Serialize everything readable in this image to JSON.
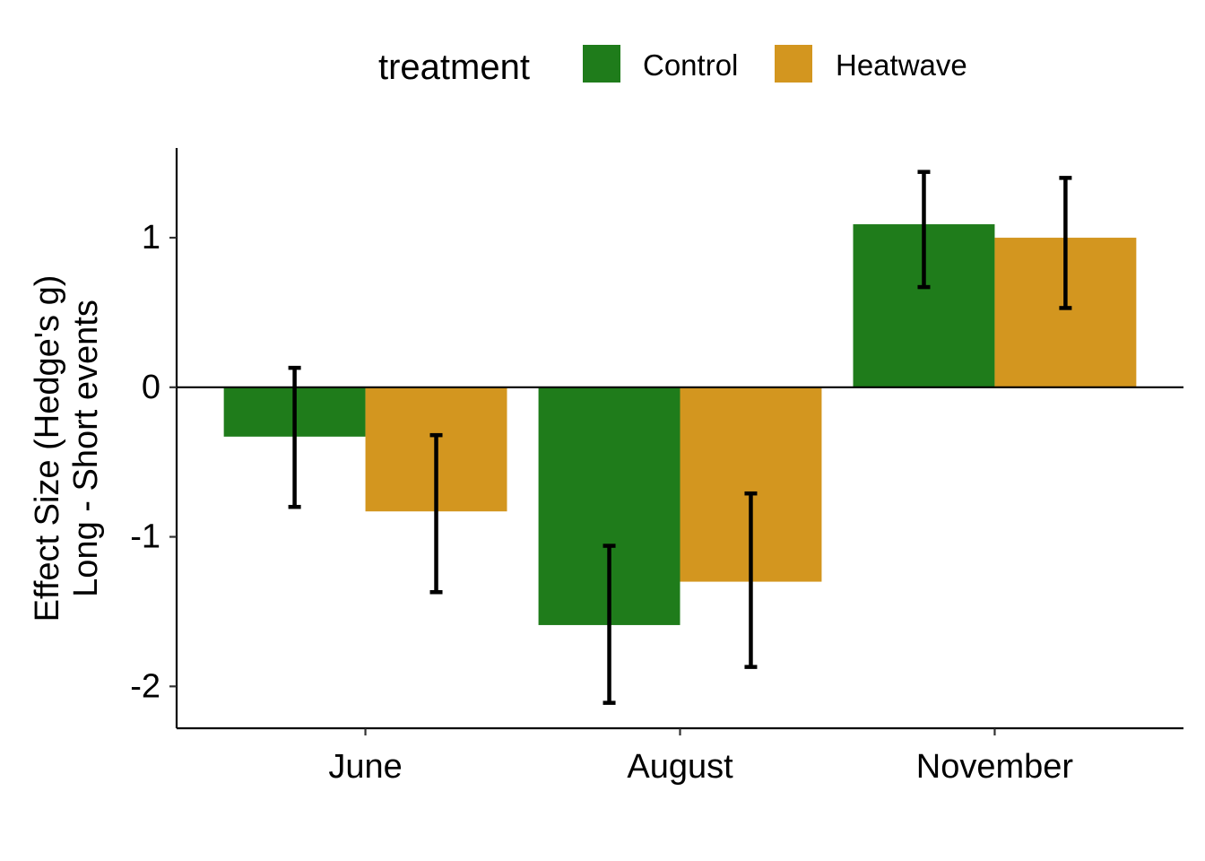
{
  "chart_data": {
    "type": "bar",
    "categories": [
      "June",
      "August",
      "November"
    ],
    "series": [
      {
        "name": "Control",
        "color": "#1f7c1b",
        "values": [
          -0.33,
          -1.59,
          1.09
        ],
        "error_low": [
          -0.8,
          -2.11,
          0.67
        ],
        "error_high": [
          0.13,
          -1.06,
          1.44
        ]
      },
      {
        "name": "Heatwave",
        "color": "#d3961f",
        "values": [
          -0.83,
          -1.3,
          1.0
        ],
        "error_low": [
          -1.37,
          -1.87,
          0.53
        ],
        "error_high": [
          -0.32,
          -0.71,
          1.4
        ]
      }
    ],
    "legend_title": "treatment",
    "legend_position": "top",
    "ylabel_line1": "Effect Size (Hedge's g)",
    "ylabel_line2": "Long - Short events",
    "xlabel": "",
    "yticks": [
      1,
      0,
      -1,
      -2
    ],
    "ytick_labels": [
      "1",
      "0",
      "-1",
      "-2"
    ],
    "ylim": [
      -2.28,
      1.6
    ],
    "grid": false,
    "zero_line": true
  }
}
